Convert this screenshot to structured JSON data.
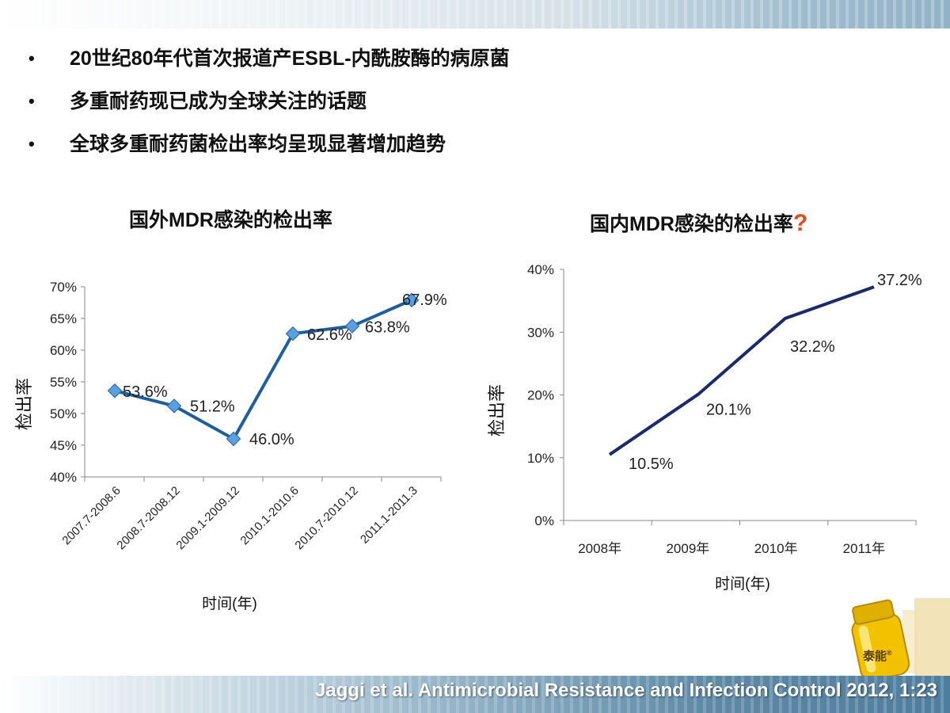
{
  "bullets": [
    "20世纪80年代首次报道产ESBL-内酰胺酶的病原菌",
    "多重耐药现已成为全球关注的话题",
    "全球多重耐药菌检出率均呈现显著增加趋势"
  ],
  "bullet_marker": "•",
  "chart_left_title": "国外MDR感染的检出率",
  "chart_right_title": "国内MDR感染的检出率",
  "chart_right_title_mark": "?",
  "logo_label": "泰能",
  "logo_mark": "®",
  "citation": "Jaggi et al. Antimicrobial Resistance and Infection Control 2012, 1:23",
  "colors": {
    "line_left": "#1f5e9e",
    "marker_left": "#5aa0e0",
    "line_right": "#1a2a6c",
    "question_mark": "#e8471b"
  },
  "chart_data": [
    {
      "type": "line",
      "categories": [
        "2007.7-2008.6",
        "2008.7-2008.12",
        "2009.1-2009.12",
        "2010.1-2010.6",
        "2010.7-2010.12",
        "2011.1-2011.3"
      ],
      "values": [
        53.6,
        51.2,
        46.0,
        62.6,
        63.8,
        67.9
      ],
      "data_labels": [
        "53.6%",
        "51.2%",
        "46.0%",
        "62.6%",
        "63.8%",
        "67.9%"
      ],
      "yticks": [
        "40%",
        "45%",
        "50%",
        "55%",
        "60%",
        "65%",
        "70%"
      ],
      "ylim": [
        40,
        70
      ],
      "xlabel": "时间(年)",
      "ylabel": "检出率",
      "markers": true,
      "grid": false
    },
    {
      "type": "line",
      "categories": [
        "2008年",
        "2009年",
        "2010年",
        "2011年"
      ],
      "values": [
        10.5,
        20.1,
        32.2,
        37.2
      ],
      "data_labels": [
        "10.5%",
        "20.1%",
        "32.2%",
        "37.2%"
      ],
      "yticks": [
        "0%",
        "10%",
        "20%",
        "30%",
        "40%"
      ],
      "ylim": [
        0,
        40
      ],
      "xlabel": "时间(年)",
      "ylabel": "检出率",
      "markers": false,
      "grid": false
    }
  ]
}
